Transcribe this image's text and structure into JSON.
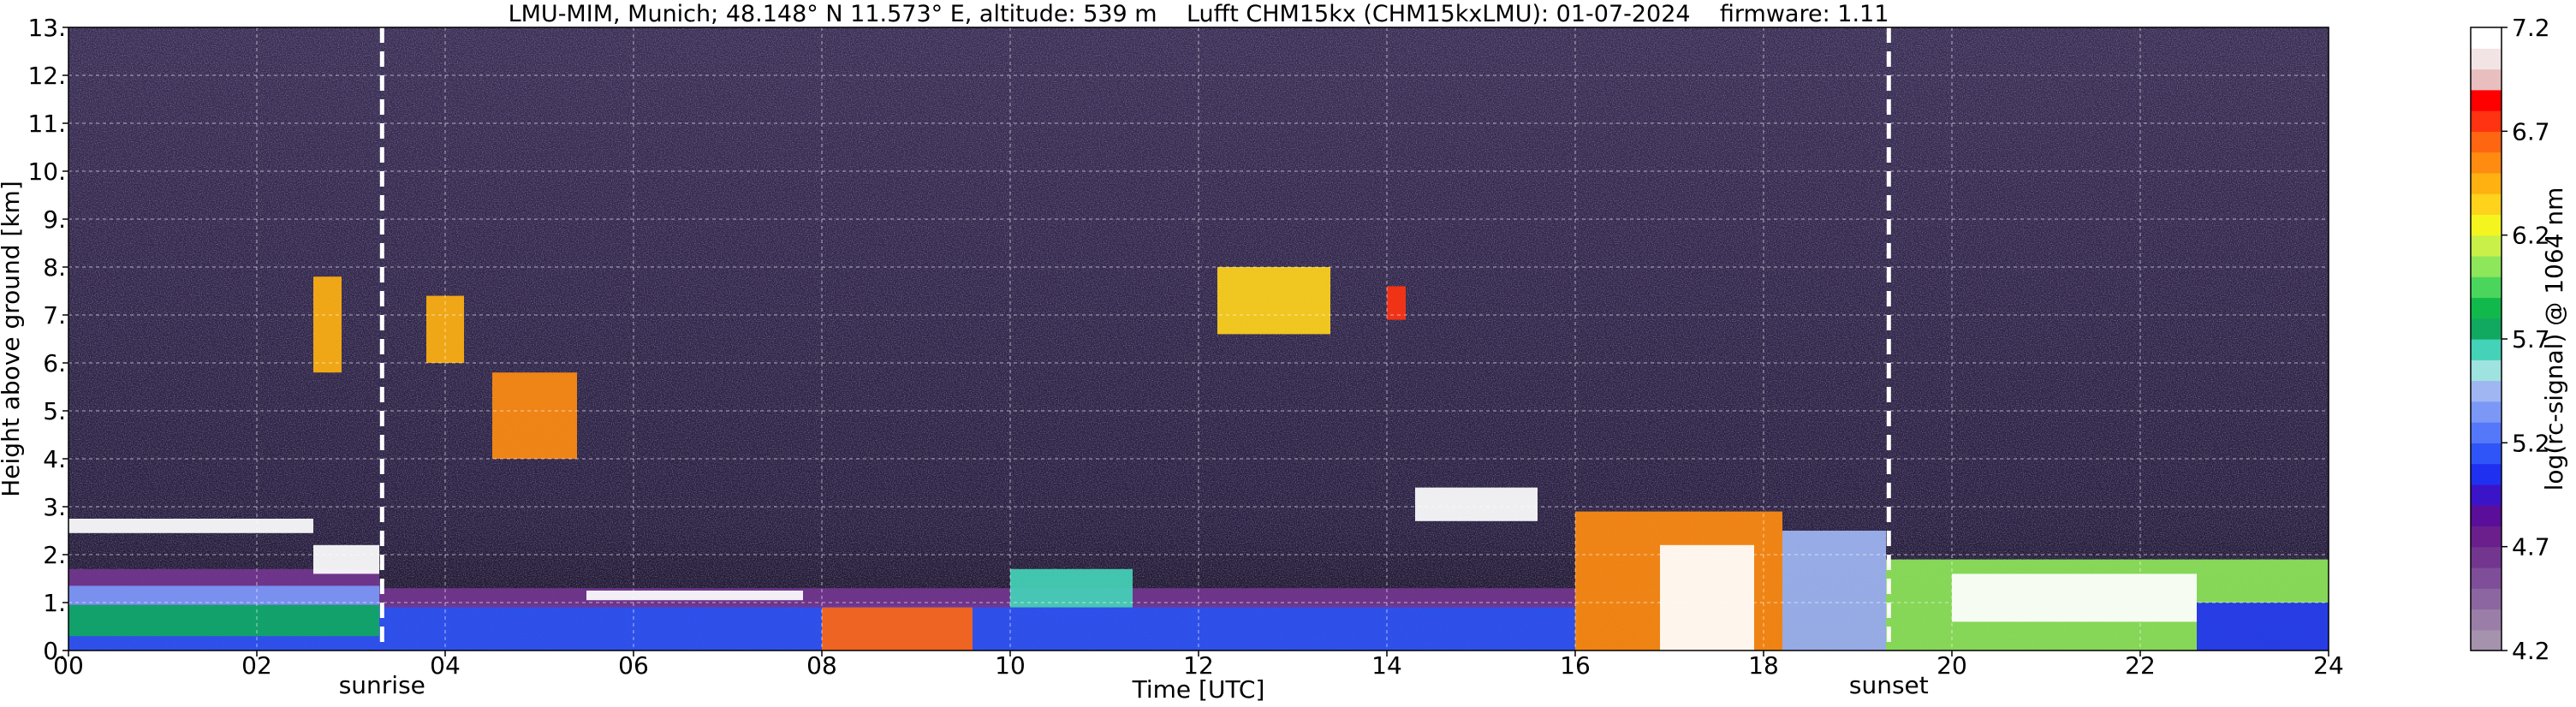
{
  "chart_data": {
    "type": "heatmap",
    "title": "LMU-MIM, Munich; 48.148° N 11.573° E, altitude: 539 m    Lufft CHM15kx (CHM15kxLMU): 01-07-2024    firmware: 1.11",
    "xlabel": "Time [UTC]",
    "ylabel": "Height above ground [km]",
    "xlim": [
      0,
      24
    ],
    "ylim": [
      0,
      13
    ],
    "x_ticks": [
      "00",
      "02",
      "04",
      "06",
      "08",
      "10",
      "12",
      "14",
      "16",
      "18",
      "20",
      "22",
      "24"
    ],
    "y_ticks": [
      "0.",
      "1.",
      "2.",
      "3.",
      "4.",
      "5.",
      "6.",
      "7.",
      "8.",
      "9.",
      "10.",
      "11.",
      "12.",
      "13."
    ],
    "grid": true,
    "background_color": "#2e2447",
    "colorbar": {
      "label": "log(rc-signal) @ 1064 nm",
      "range": [
        4.2,
        7.2
      ],
      "ticks": [
        "4.2",
        "4.7",
        "5.2",
        "5.7",
        "6.2",
        "6.7",
        "7.2"
      ],
      "colors": [
        "#a592ad",
        "#9a7ea8",
        "#8c66a0",
        "#7f4e98",
        "#73368f",
        "#6a1f8c",
        "#5a0e9a",
        "#3c14c8",
        "#1f30f0",
        "#2f55f8",
        "#5578fa",
        "#7b98f7",
        "#9fb6f3",
        "#9ee3e0",
        "#44d2b8",
        "#11a860",
        "#11b84b",
        "#4ad65c",
        "#8ee65a",
        "#c8f048",
        "#f4f51e",
        "#ffd21c",
        "#ffb111",
        "#ff8c11",
        "#ff6611",
        "#ff3311",
        "#ff0000",
        "#e8bebe",
        "#f2e4e4",
        "#ffffff"
      ]
    },
    "markers": [
      {
        "label": "sunrise",
        "x": 3.33
      },
      {
        "label": "sunset",
        "x": 19.33
      }
    ],
    "features": [
      {
        "x_start": 0,
        "x_end": 16,
        "y_bottom": 0.0,
        "y_top": 0.95,
        "level": 5.15
      },
      {
        "x_start": 0,
        "x_end": 3.3,
        "y_bottom": 0.95,
        "y_top": 1.7,
        "level": 4.65
      },
      {
        "x_start": 0,
        "x_end": 3.3,
        "y_bottom": 0.95,
        "y_top": 1.35,
        "level": 5.3
      },
      {
        "x_start": 0,
        "x_end": 3.3,
        "y_bottom": 0.3,
        "y_top": 0.95,
        "level": 5.75
      },
      {
        "x_start": 3.3,
        "x_end": 16,
        "y_bottom": 0.9,
        "y_top": 1.3,
        "level": 4.6
      },
      {
        "x_start": 0,
        "x_end": 2.6,
        "y_bottom": 2.45,
        "y_top": 2.75,
        "level": 7.2
      },
      {
        "x_start": 2.6,
        "x_end": 3.3,
        "y_bottom": 1.6,
        "y_top": 2.2,
        "level": 7.2
      },
      {
        "x_start": 5.5,
        "x_end": 7.8,
        "y_bottom": 1.05,
        "y_top": 1.25,
        "level": 7.2
      },
      {
        "x_start": 8.0,
        "x_end": 9.6,
        "y_bottom": 0.0,
        "y_top": 0.9,
        "level": 6.7
      },
      {
        "x_start": 10.0,
        "x_end": 11.3,
        "y_bottom": 0.9,
        "y_top": 1.7,
        "level": 5.6
      },
      {
        "x_start": 14.3,
        "x_end": 15.6,
        "y_bottom": 2.7,
        "y_top": 3.4,
        "level": 7.2
      },
      {
        "x_start": 16.0,
        "x_end": 18.2,
        "y_bottom": 0.0,
        "y_top": 2.9,
        "level": 6.6
      },
      {
        "x_start": 16.9,
        "x_end": 17.9,
        "y_bottom": 0.0,
        "y_top": 2.2,
        "level": 7.2
      },
      {
        "x_start": 18.2,
        "x_end": 19.3,
        "y_bottom": 0.0,
        "y_top": 2.5,
        "level": 5.4
      },
      {
        "x_start": 19.3,
        "x_end": 24,
        "y_bottom": 0.0,
        "y_top": 1.9,
        "level": 6.1
      },
      {
        "x_start": 20.0,
        "x_end": 22.6,
        "y_bottom": 0.6,
        "y_top": 1.6,
        "level": 7.2
      },
      {
        "x_start": 22.6,
        "x_end": 24,
        "y_bottom": 0.0,
        "y_top": 1.0,
        "level": 5.0
      },
      {
        "x_start": 2.6,
        "x_end": 2.9,
        "y_bottom": 5.8,
        "y_top": 7.8,
        "level": 6.5
      },
      {
        "x_start": 3.8,
        "x_end": 4.2,
        "y_bottom": 6.0,
        "y_top": 7.4,
        "level": 6.5
      },
      {
        "x_start": 4.5,
        "x_end": 5.4,
        "y_bottom": 4.0,
        "y_top": 5.8,
        "level": 6.6
      },
      {
        "x_start": 12.2,
        "x_end": 13.4,
        "y_bottom": 6.6,
        "y_top": 8.0,
        "level": 6.4
      },
      {
        "x_start": 14.0,
        "x_end": 14.2,
        "y_bottom": 6.9,
        "y_top": 7.6,
        "level": 6.8
      }
    ]
  }
}
